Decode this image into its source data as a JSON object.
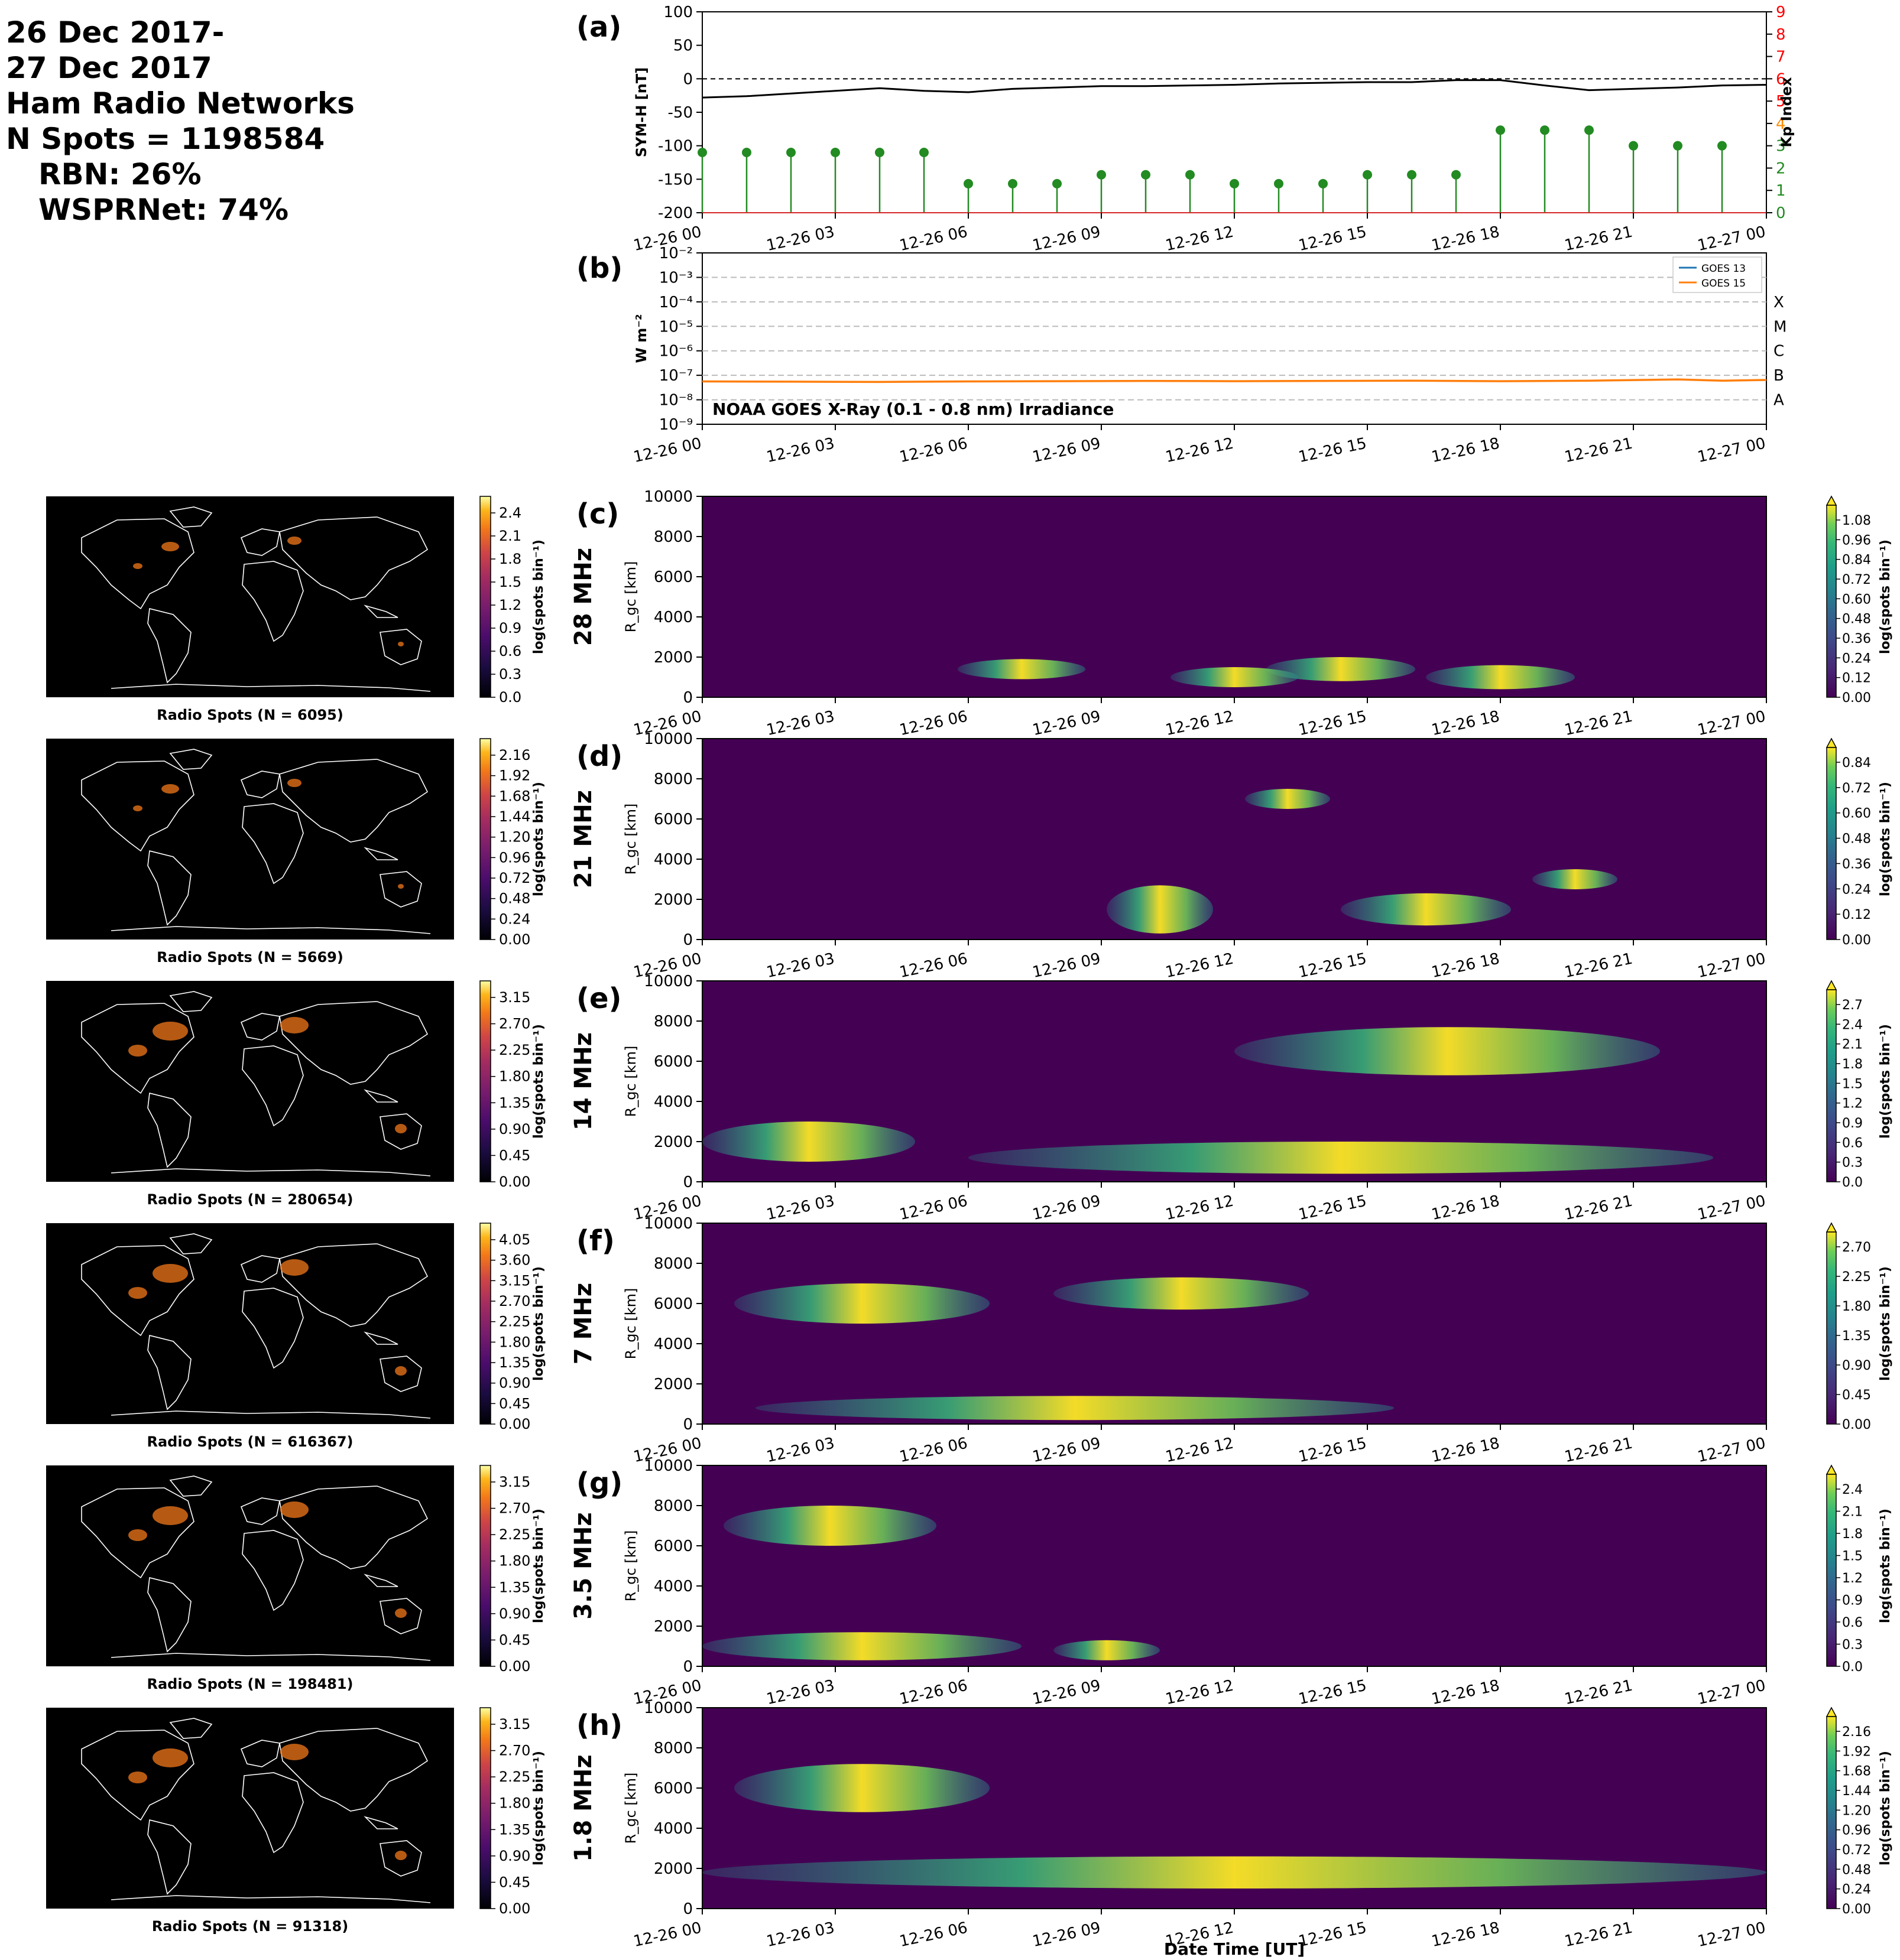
{
  "header": {
    "lines": [
      "26 Dec 2017-",
      "27 Dec 2017",
      "Ham Radio Networks",
      "N Spots = 1198584"
    ],
    "network_lines": [
      "RBN: 26%",
      "WSPRNet: 74%"
    ]
  },
  "colors": {
    "sym_h": "#000000",
    "kp": "#228b22",
    "goes13": "#1f77b4",
    "goes15": "#ff7f0e",
    "kp_axis_low": "#228b22",
    "kp_axis_mid": "#ff8c00",
    "kp_axis_high": "#ff0000"
  },
  "time_ticks": [
    "12-26 00",
    "12-26 03",
    "12-26 06",
    "12-26 09",
    "12-26 12",
    "12-26 15",
    "12-26 18",
    "12-26 21",
    "12-27 00"
  ],
  "xlabel": "Date Time [UT]",
  "chart_data": [
    {
      "id": "a",
      "panel_label": "(a)",
      "type": "line",
      "ylabel": "SYM-H [nT]",
      "ylim": [
        -200,
        100
      ],
      "yticks": [
        100,
        50,
        0,
        -50,
        -100,
        -150,
        -200
      ],
      "y2label": "Kp Index",
      "y2lim": [
        0,
        9
      ],
      "y2ticks": [
        0,
        1,
        2,
        3,
        4,
        5,
        6,
        7,
        8,
        9
      ],
      "sym_h": {
        "x_hours": [
          0,
          1,
          2,
          3,
          4,
          5,
          6,
          7,
          8,
          9,
          10,
          11,
          12,
          13,
          14,
          15,
          16,
          17,
          18,
          19,
          20,
          21,
          22,
          23,
          24
        ],
        "values": [
          -28,
          -26,
          -22,
          -18,
          -14,
          -18,
          -20,
          -15,
          -13,
          -11,
          -11,
          -10,
          -9,
          -7,
          -6,
          -5,
          -5,
          -2,
          -2,
          -10,
          -17,
          -15,
          -13,
          -10,
          -9
        ]
      },
      "kp": {
        "x_hours": [
          0,
          1,
          2,
          3,
          4,
          5,
          6,
          7,
          8,
          9,
          10,
          11,
          12,
          13,
          14,
          15,
          16,
          17,
          18,
          19,
          20,
          21,
          22,
          23
        ],
        "values": [
          2.7,
          2.7,
          2.7,
          2.7,
          2.7,
          2.7,
          1.3,
          1.3,
          1.3,
          1.7,
          1.7,
          1.7,
          1.3,
          1.3,
          1.3,
          1.7,
          1.7,
          1.7,
          3.7,
          3.7,
          3.7,
          3.0,
          3.0,
          3.0
        ]
      },
      "zero_line": 0
    },
    {
      "id": "b",
      "panel_label": "(b)",
      "type": "line",
      "ylabel": "W m⁻²",
      "ylog": true,
      "ylim_exp": [
        -9,
        -2
      ],
      "ytick_labels": [
        "10⁻²",
        "10⁻³",
        "10⁻⁴",
        "10⁻⁵",
        "10⁻⁶",
        "10⁻⁷",
        "10⁻⁸",
        "10⁻⁹"
      ],
      "flare_classes": [
        {
          "label": "X",
          "exp": -4
        },
        {
          "label": "M",
          "exp": -5
        },
        {
          "label": "C",
          "exp": -6
        },
        {
          "label": "B",
          "exp": -7
        },
        {
          "label": "A",
          "exp": -8
        }
      ],
      "annotation": "NOAA GOES X-Ray (0.1 - 0.8 nm) Irradiance",
      "legend": [
        "GOES 13",
        "GOES 15"
      ],
      "legend_position": "top-right",
      "goes15": {
        "x_hours": [
          0,
          2,
          4,
          6,
          8,
          10,
          12,
          14,
          16,
          18,
          20,
          22,
          23,
          24
        ],
        "values_log10": [
          -7.25,
          -7.26,
          -7.27,
          -7.25,
          -7.24,
          -7.23,
          -7.24,
          -7.23,
          -7.22,
          -7.24,
          -7.22,
          -7.17,
          -7.22,
          -7.19
        ]
      }
    }
  ],
  "bands": [
    {
      "id": "c",
      "panel_label": "(c)",
      "band": "28 MHz",
      "ylabel": "R_gc [km]",
      "map_caption": "Radio Spots (N = 6095)",
      "map_ticks": [
        "2.4",
        "2.1",
        "1.8",
        "1.5",
        "1.2",
        "0.9",
        "0.6",
        "0.3",
        "0.0"
      ],
      "rti_ticks": [
        "1.08",
        "0.96",
        "0.84",
        "0.72",
        "0.60",
        "0.48",
        "0.36",
        "0.24",
        "0.12",
        "0.00"
      ]
    },
    {
      "id": "d",
      "panel_label": "(d)",
      "band": "21 MHz",
      "ylabel": "R_gc [km]",
      "map_caption": "Radio Spots (N = 5669)",
      "map_ticks": [
        "2.16",
        "1.92",
        "1.68",
        "1.44",
        "1.20",
        "0.96",
        "0.72",
        "0.48",
        "0.24",
        "0.00"
      ],
      "rti_ticks": [
        "0.84",
        "0.72",
        "0.60",
        "0.48",
        "0.36",
        "0.24",
        "0.12",
        "0.00"
      ]
    },
    {
      "id": "e",
      "panel_label": "(e)",
      "band": "14 MHz",
      "ylabel": "R_gc [km]",
      "map_caption": "Radio Spots (N = 280654)",
      "map_ticks": [
        "3.15",
        "2.70",
        "2.25",
        "1.80",
        "1.35",
        "0.90",
        "0.45",
        "0.00"
      ],
      "rti_ticks": [
        "2.7",
        "2.4",
        "2.1",
        "1.8",
        "1.5",
        "1.2",
        "0.9",
        "0.6",
        "0.3",
        "0.0"
      ]
    },
    {
      "id": "f",
      "panel_label": "(f)",
      "band": "7 MHz",
      "ylabel": "R_gc [km]",
      "map_caption": "Radio Spots (N = 616367)",
      "map_ticks": [
        "4.05",
        "3.60",
        "3.15",
        "2.70",
        "2.25",
        "1.80",
        "1.35",
        "0.90",
        "0.45",
        "0.00"
      ],
      "rti_ticks": [
        "2.70",
        "2.25",
        "1.80",
        "1.35",
        "0.90",
        "0.45",
        "0.00"
      ]
    },
    {
      "id": "g",
      "panel_label": "(g)",
      "band": "3.5 MHz",
      "ylabel": "R_gc [km]",
      "map_caption": "Radio Spots (N = 198481)",
      "map_ticks": [
        "3.15",
        "2.70",
        "2.25",
        "1.80",
        "1.35",
        "0.90",
        "0.45",
        "0.00"
      ],
      "rti_ticks": [
        "2.4",
        "2.1",
        "1.8",
        "1.5",
        "1.2",
        "0.9",
        "0.6",
        "0.3",
        "0.0"
      ]
    },
    {
      "id": "h",
      "panel_label": "(h)",
      "band": "1.8 MHz",
      "ylabel": "R_gc [km]",
      "map_caption": "Radio Spots (N = 91318)",
      "map_ticks": [
        "3.15",
        "2.70",
        "2.25",
        "1.80",
        "1.35",
        "0.90",
        "0.45",
        "0.00"
      ],
      "rti_ticks": [
        "2.16",
        "1.92",
        "1.68",
        "1.44",
        "1.20",
        "0.96",
        "0.72",
        "0.48",
        "0.24",
        "0.00"
      ]
    }
  ],
  "rti_yticks": [
    "10000",
    "8000",
    "6000",
    "4000",
    "2000",
    "0"
  ],
  "colorbar_label": "log(spots bin⁻¹)"
}
